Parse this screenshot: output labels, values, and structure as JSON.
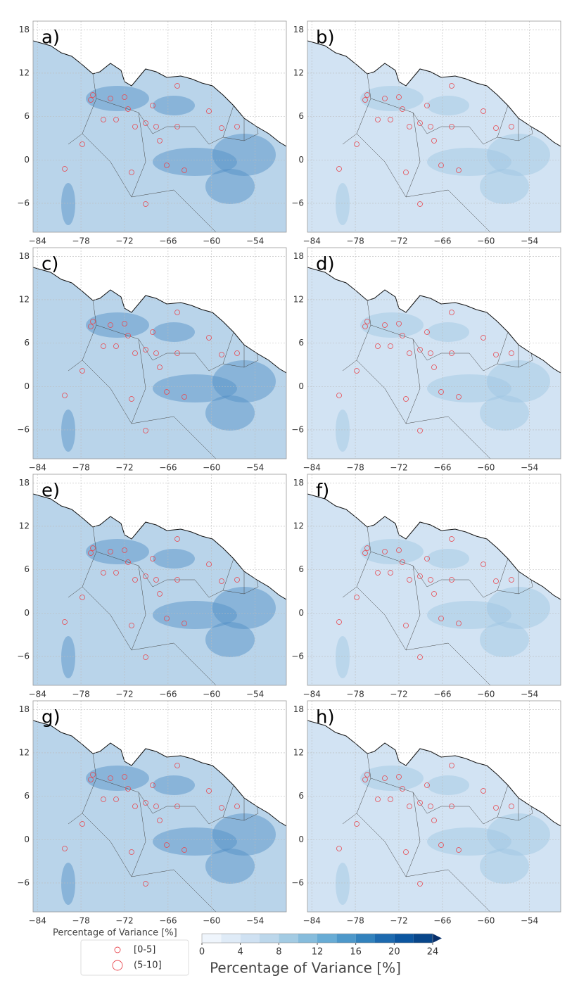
{
  "panels": [
    {
      "label": "a)"
    },
    {
      "label": "b)"
    },
    {
      "label": "c)"
    },
    {
      "label": "d)"
    },
    {
      "label": "e)"
    },
    {
      "label": "f)"
    },
    {
      "label": "g)"
    },
    {
      "label": "h)"
    }
  ],
  "axes": {
    "xlim": [
      -84.6,
      -49.7
    ],
    "ylim": [
      -10,
      19.2
    ],
    "xticks": [
      {
        "value": -84,
        "label": "−84"
      },
      {
        "value": -78,
        "label": "−78"
      },
      {
        "value": -72,
        "label": "−72"
      },
      {
        "value": -66,
        "label": "−66"
      },
      {
        "value": -60,
        "label": "−60"
      },
      {
        "value": -54,
        "label": "−54"
      }
    ],
    "yticks": [
      {
        "value": -6,
        "label": "−6"
      },
      0,
      6,
      12,
      18
    ],
    "grid": true
  },
  "legend": {
    "title": "Percentage of Variance [%]",
    "entries": [
      "[0-5]",
      "(5-10]"
    ],
    "color": "#e8474f"
  },
  "colorbar": {
    "label": "Percentage of Variance [%]",
    "levels": [
      0,
      2,
      4,
      6,
      8,
      10,
      12,
      14,
      16,
      18,
      20,
      22,
      24
    ],
    "ticks": [
      0,
      4,
      8,
      12,
      16,
      20,
      24
    ],
    "colors": [
      "#eff5fc",
      "#dfebf7",
      "#cfe1f2",
      "#bcd7eb",
      "#a3cbe3",
      "#86bcdc",
      "#68acd5",
      "#4d98ca",
      "#3282bd",
      "#1d6aaf",
      "#0c56a0",
      "#08468a"
    ],
    "extend_color": "#08306b"
  }
}
